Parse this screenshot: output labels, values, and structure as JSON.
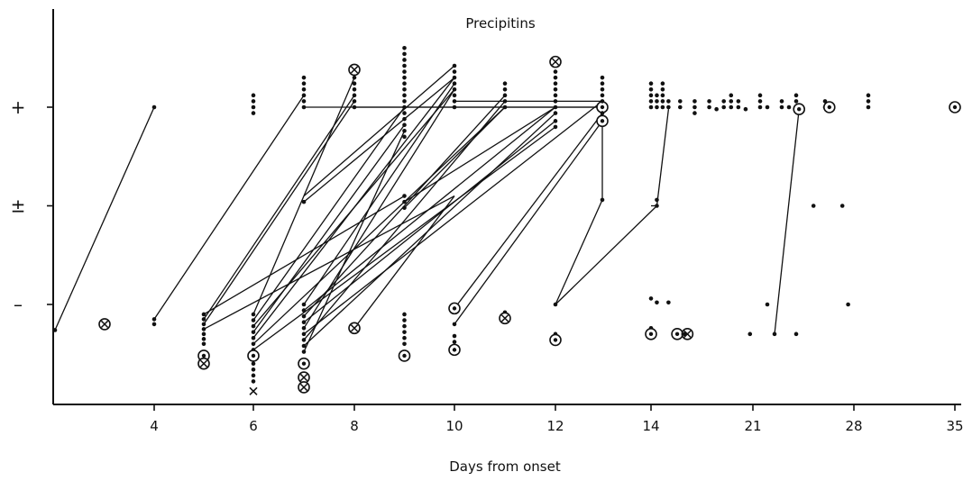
{
  "chart_data": {
    "type": "scatter",
    "title": "Precipitins",
    "xlabel": "Days from onset",
    "ylabel": "",
    "x_tick_labels": [
      "4",
      "6",
      "8",
      "10",
      "12",
      "14",
      "21",
      "28",
      "35"
    ],
    "y_categories": [
      "–",
      "±",
      "+"
    ],
    "grid": false,
    "legend": "none",
    "x_range": [
      2,
      36
    ],
    "y_scale_note": "categorical precipitin result; jittered vertically around each category",
    "marker_types": {
      "dot": "filled dot",
      "ring": "circled dot",
      "cross": "circled cross",
      "x": "cross"
    },
    "points": [
      {
        "x": 2,
        "y": -0.26,
        "m": "dot"
      },
      {
        "x": 3,
        "y": -0.2,
        "m": "cross"
      },
      {
        "x": 4,
        "y": -0.15,
        "m": "dot"
      },
      {
        "x": 4,
        "y": -0.2,
        "m": "dot"
      },
      {
        "x": 4,
        "y": 2.0,
        "m": "dot"
      },
      {
        "x": 5,
        "y": -0.1,
        "m": "dot"
      },
      {
        "x": 5,
        "y": -0.15,
        "m": "dot"
      },
      {
        "x": 5,
        "y": -0.2,
        "m": "dot"
      },
      {
        "x": 5,
        "y": -0.25,
        "m": "dot"
      },
      {
        "x": 5,
        "y": -0.3,
        "m": "dot"
      },
      {
        "x": 5,
        "y": -0.35,
        "m": "dot"
      },
      {
        "x": 5,
        "y": -0.4,
        "m": "dot"
      },
      {
        "x": 5,
        "y": -0.52,
        "m": "ring"
      },
      {
        "x": 5,
        "y": -0.6,
        "m": "cross"
      },
      {
        "x": 6,
        "y": 2.06,
        "m": "dot"
      },
      {
        "x": 6,
        "y": 2.0,
        "m": "dot"
      },
      {
        "x": 6,
        "y": 1.94,
        "m": "dot"
      },
      {
        "x": 6,
        "y": 2.12,
        "m": "dot"
      },
      {
        "x": 6,
        "y": -0.1,
        "m": "dot"
      },
      {
        "x": 6,
        "y": -0.16,
        "m": "dot"
      },
      {
        "x": 6,
        "y": -0.22,
        "m": "dot"
      },
      {
        "x": 6,
        "y": -0.28,
        "m": "dot"
      },
      {
        "x": 6,
        "y": -0.34,
        "m": "dot"
      },
      {
        "x": 6,
        "y": -0.4,
        "m": "dot"
      },
      {
        "x": 6,
        "y": -0.46,
        "m": "dot"
      },
      {
        "x": 6,
        "y": -0.52,
        "m": "ring"
      },
      {
        "x": 6,
        "y": -0.6,
        "m": "dot"
      },
      {
        "x": 6,
        "y": -0.66,
        "m": "dot"
      },
      {
        "x": 6,
        "y": -0.72,
        "m": "dot"
      },
      {
        "x": 6,
        "y": -0.78,
        "m": "dot"
      },
      {
        "x": 6,
        "y": -0.88,
        "m": "x"
      },
      {
        "x": 7,
        "y": 2.0,
        "m": "dot"
      },
      {
        "x": 7,
        "y": 2.06,
        "m": "dot"
      },
      {
        "x": 7,
        "y": 2.12,
        "m": "dot"
      },
      {
        "x": 7,
        "y": 2.18,
        "m": "dot"
      },
      {
        "x": 7,
        "y": 2.24,
        "m": "dot"
      },
      {
        "x": 7,
        "y": 2.3,
        "m": "dot"
      },
      {
        "x": 7,
        "y": 1.04,
        "m": "dot"
      },
      {
        "x": 7,
        "y": 0.0,
        "m": "dot"
      },
      {
        "x": 7,
        "y": -0.06,
        "m": "dot"
      },
      {
        "x": 7,
        "y": -0.12,
        "m": "dot"
      },
      {
        "x": 7,
        "y": -0.18,
        "m": "dot"
      },
      {
        "x": 7,
        "y": -0.24,
        "m": "dot"
      },
      {
        "x": 7,
        "y": -0.3,
        "m": "dot"
      },
      {
        "x": 7,
        "y": -0.36,
        "m": "dot"
      },
      {
        "x": 7,
        "y": -0.42,
        "m": "dot"
      },
      {
        "x": 7,
        "y": -0.48,
        "m": "dot"
      },
      {
        "x": 7,
        "y": -0.6,
        "m": "ring"
      },
      {
        "x": 7,
        "y": -0.74,
        "m": "cross"
      },
      {
        "x": 7,
        "y": -0.84,
        "m": "cross"
      },
      {
        "x": 8,
        "y": 2.0,
        "m": "dot"
      },
      {
        "x": 8,
        "y": 2.06,
        "m": "dot"
      },
      {
        "x": 8,
        "y": 2.12,
        "m": "dot"
      },
      {
        "x": 8,
        "y": 2.18,
        "m": "dot"
      },
      {
        "x": 8,
        "y": 2.24,
        "m": "dot"
      },
      {
        "x": 8,
        "y": 2.3,
        "m": "dot"
      },
      {
        "x": 8,
        "y": 2.38,
        "m": "cross"
      },
      {
        "x": 8,
        "y": -0.24,
        "m": "cross"
      },
      {
        "x": 9,
        "y": 2.0,
        "m": "dot"
      },
      {
        "x": 9,
        "y": 2.06,
        "m": "dot"
      },
      {
        "x": 9,
        "y": 2.12,
        "m": "dot"
      },
      {
        "x": 9,
        "y": 2.18,
        "m": "dot"
      },
      {
        "x": 9,
        "y": 2.24,
        "m": "dot"
      },
      {
        "x": 9,
        "y": 2.3,
        "m": "dot"
      },
      {
        "x": 9,
        "y": 2.36,
        "m": "dot"
      },
      {
        "x": 9,
        "y": 2.42,
        "m": "dot"
      },
      {
        "x": 9,
        "y": 2.48,
        "m": "dot"
      },
      {
        "x": 9,
        "y": 2.54,
        "m": "dot"
      },
      {
        "x": 9,
        "y": 2.6,
        "m": "dot"
      },
      {
        "x": 9,
        "y": 1.94,
        "m": "dot"
      },
      {
        "x": 9,
        "y": 1.88,
        "m": "dot"
      },
      {
        "x": 9,
        "y": 1.82,
        "m": "dot"
      },
      {
        "x": 9,
        "y": 1.76,
        "m": "dot"
      },
      {
        "x": 9,
        "y": 1.7,
        "m": "dot"
      },
      {
        "x": 9,
        "y": 1.1,
        "m": "dot"
      },
      {
        "x": 9,
        "y": 1.04,
        "m": "dot"
      },
      {
        "x": 9,
        "y": 0.98,
        "m": "dot"
      },
      {
        "x": 9,
        "y": -0.1,
        "m": "dot"
      },
      {
        "x": 9,
        "y": -0.16,
        "m": "dot"
      },
      {
        "x": 9,
        "y": -0.22,
        "m": "dot"
      },
      {
        "x": 9,
        "y": -0.28,
        "m": "dot"
      },
      {
        "x": 9,
        "y": -0.34,
        "m": "dot"
      },
      {
        "x": 9,
        "y": -0.4,
        "m": "dot"
      },
      {
        "x": 9,
        "y": -0.52,
        "m": "ring"
      },
      {
        "x": 10,
        "y": 2.0,
        "m": "dot"
      },
      {
        "x": 10,
        "y": 2.06,
        "m": "dot"
      },
      {
        "x": 10,
        "y": 2.12,
        "m": "dot"
      },
      {
        "x": 10,
        "y": 2.18,
        "m": "dot"
      },
      {
        "x": 10,
        "y": 2.24,
        "m": "dot"
      },
      {
        "x": 10,
        "y": 2.3,
        "m": "dot"
      },
      {
        "x": 10,
        "y": 2.36,
        "m": "dot"
      },
      {
        "x": 10,
        "y": 2.42,
        "m": "dot"
      },
      {
        "x": 10,
        "y": -0.04,
        "m": "ring"
      },
      {
        "x": 10,
        "y": -0.2,
        "m": "dot"
      },
      {
        "x": 10,
        "y": -0.32,
        "m": "dot"
      },
      {
        "x": 10,
        "y": -0.38,
        "m": "dot"
      },
      {
        "x": 10,
        "y": -0.46,
        "m": "ring"
      },
      {
        "x": 11,
        "y": 2.0,
        "m": "dot"
      },
      {
        "x": 11,
        "y": 2.06,
        "m": "dot"
      },
      {
        "x": 11,
        "y": 2.12,
        "m": "dot"
      },
      {
        "x": 11,
        "y": 2.18,
        "m": "dot"
      },
      {
        "x": 11,
        "y": 2.24,
        "m": "dot"
      },
      {
        "x": 11,
        "y": -0.08,
        "m": "dot"
      },
      {
        "x": 11,
        "y": -0.14,
        "m": "cross"
      },
      {
        "x": 12,
        "y": 2.0,
        "m": "dot"
      },
      {
        "x": 12,
        "y": 2.06,
        "m": "dot"
      },
      {
        "x": 12,
        "y": 2.12,
        "m": "dot"
      },
      {
        "x": 12,
        "y": 2.18,
        "m": "dot"
      },
      {
        "x": 12,
        "y": 2.24,
        "m": "dot"
      },
      {
        "x": 12,
        "y": 2.3,
        "m": "dot"
      },
      {
        "x": 12,
        "y": 2.36,
        "m": "dot"
      },
      {
        "x": 12,
        "y": 2.46,
        "m": "cross"
      },
      {
        "x": 12,
        "y": 1.94,
        "m": "dot"
      },
      {
        "x": 12,
        "y": 1.86,
        "m": "dot"
      },
      {
        "x": 12,
        "y": 1.8,
        "m": "dot"
      },
      {
        "x": 12,
        "y": 0.0,
        "m": "dot"
      },
      {
        "x": 12,
        "y": -0.3,
        "m": "dot"
      },
      {
        "x": 12,
        "y": -0.36,
        "m": "ring"
      },
      {
        "x": 13,
        "y": 2.0,
        "m": "ring"
      },
      {
        "x": 13,
        "y": 1.86,
        "m": "ring"
      },
      {
        "x": 13,
        "y": 2.06,
        "m": "dot"
      },
      {
        "x": 13,
        "y": 2.12,
        "m": "dot"
      },
      {
        "x": 13,
        "y": 2.18,
        "m": "dot"
      },
      {
        "x": 13,
        "y": 2.24,
        "m": "dot"
      },
      {
        "x": 13,
        "y": 2.3,
        "m": "dot"
      },
      {
        "x": 13,
        "y": 1.94,
        "m": "dot"
      },
      {
        "x": 13,
        "y": 1.06,
        "m": "dot"
      },
      {
        "x": 14,
        "y": 2.0,
        "m": "dot"
      },
      {
        "x": 14,
        "y": 2.06,
        "m": "dot"
      },
      {
        "x": 14,
        "y": 2.12,
        "m": "dot"
      },
      {
        "x": 14,
        "y": 2.18,
        "m": "dot"
      },
      {
        "x": 14,
        "y": 2.24,
        "m": "dot"
      },
      {
        "x": 14,
        "y": 0.06,
        "m": "dot"
      },
      {
        "x": 14,
        "y": -0.24,
        "m": "dot"
      },
      {
        "x": 14,
        "y": -0.3,
        "m": "ring"
      },
      {
        "x": 14.4,
        "y": 2.0,
        "m": "dot"
      },
      {
        "x": 14.4,
        "y": 2.06,
        "m": "dot"
      },
      {
        "x": 14.4,
        "y": 2.12,
        "m": "dot"
      },
      {
        "x": 14.4,
        "y": 1.06,
        "m": "dot"
      },
      {
        "x": 14.4,
        "y": 1.0,
        "m": "dot"
      },
      {
        "x": 14.4,
        "y": 0.02,
        "m": "dot"
      },
      {
        "x": 14.8,
        "y": 2.0,
        "m": "dot"
      },
      {
        "x": 14.8,
        "y": 2.06,
        "m": "dot"
      },
      {
        "x": 14.8,
        "y": 2.12,
        "m": "dot"
      },
      {
        "x": 14.8,
        "y": 2.18,
        "m": "dot"
      },
      {
        "x": 14.8,
        "y": 2.24,
        "m": "dot"
      },
      {
        "x": 15.2,
        "y": 2.0,
        "m": "dot"
      },
      {
        "x": 15.2,
        "y": 2.06,
        "m": "dot"
      },
      {
        "x": 15.2,
        "y": 0.02,
        "m": "dot"
      },
      {
        "x": 15.8,
        "y": -0.3,
        "m": "ring"
      },
      {
        "x": 16,
        "y": 2.0,
        "m": "dot"
      },
      {
        "x": 16,
        "y": 2.06,
        "m": "dot"
      },
      {
        "x": 16.5,
        "y": -0.3,
        "m": "cross"
      },
      {
        "x": 16.3,
        "y": -0.3,
        "m": "dot"
      },
      {
        "x": 17,
        "y": 2.0,
        "m": "dot"
      },
      {
        "x": 17,
        "y": 2.06,
        "m": "dot"
      },
      {
        "x": 17,
        "y": 1.94,
        "m": "dot"
      },
      {
        "x": 18,
        "y": 2.0,
        "m": "dot"
      },
      {
        "x": 18,
        "y": 2.06,
        "m": "dot"
      },
      {
        "x": 18.5,
        "y": 1.98,
        "m": "dot"
      },
      {
        "x": 19,
        "y": 2.0,
        "m": "dot"
      },
      {
        "x": 19,
        "y": 2.06,
        "m": "dot"
      },
      {
        "x": 19.5,
        "y": 2.0,
        "m": "dot"
      },
      {
        "x": 19.5,
        "y": 2.06,
        "m": "dot"
      },
      {
        "x": 19.5,
        "y": 2.12,
        "m": "dot"
      },
      {
        "x": 20,
        "y": 2.0,
        "m": "dot"
      },
      {
        "x": 20,
        "y": 2.06,
        "m": "dot"
      },
      {
        "x": 20.5,
        "y": 1.98,
        "m": "dot"
      },
      {
        "x": 20.8,
        "y": -0.3,
        "m": "dot"
      },
      {
        "x": 21.5,
        "y": 2.0,
        "m": "dot"
      },
      {
        "x": 21.5,
        "y": 2.06,
        "m": "dot"
      },
      {
        "x": 21.5,
        "y": 2.12,
        "m": "dot"
      },
      {
        "x": 22,
        "y": 2.0,
        "m": "dot"
      },
      {
        "x": 22,
        "y": 0.0,
        "m": "dot"
      },
      {
        "x": 22.5,
        "y": -0.3,
        "m": "dot"
      },
      {
        "x": 23,
        "y": 2.0,
        "m": "dot"
      },
      {
        "x": 23,
        "y": 2.06,
        "m": "dot"
      },
      {
        "x": 23.5,
        "y": 2.0,
        "m": "dot"
      },
      {
        "x": 24,
        "y": 2.0,
        "m": "dot"
      },
      {
        "x": 24,
        "y": 2.06,
        "m": "dot"
      },
      {
        "x": 24,
        "y": 2.12,
        "m": "dot"
      },
      {
        "x": 24,
        "y": -0.3,
        "m": "dot"
      },
      {
        "x": 24.2,
        "y": 1.98,
        "m": "ring"
      },
      {
        "x": 25.2,
        "y": 1.0,
        "m": "dot"
      },
      {
        "x": 26,
        "y": 2.0,
        "m": "dot"
      },
      {
        "x": 26,
        "y": 2.06,
        "m": "dot"
      },
      {
        "x": 26.3,
        "y": 2.0,
        "m": "ring"
      },
      {
        "x": 27.2,
        "y": 1.0,
        "m": "dot"
      },
      {
        "x": 27.6,
        "y": 0.0,
        "m": "dot"
      },
      {
        "x": 29,
        "y": 2.0,
        "m": "dot"
      },
      {
        "x": 29,
        "y": 2.06,
        "m": "dot"
      },
      {
        "x": 29,
        "y": 2.12,
        "m": "dot"
      },
      {
        "x": 35,
        "y": 2.0,
        "m": "ring"
      }
    ],
    "connections": [
      [
        2,
        -0.26,
        4,
        2.0
      ],
      [
        4,
        -0.15,
        7,
        2.12
      ],
      [
        5,
        -0.1,
        9,
        1.1
      ],
      [
        5,
        -0.15,
        8,
        2.12
      ],
      [
        5,
        -0.2,
        8,
        2.06
      ],
      [
        5,
        -0.25,
        10,
        1.1
      ],
      [
        6,
        -0.1,
        8,
        2.3
      ],
      [
        6,
        -0.16,
        9,
        2.0
      ],
      [
        6,
        -0.22,
        10,
        2.18
      ],
      [
        6,
        -0.28,
        9,
        1.82
      ],
      [
        6,
        -0.34,
        10,
        2.3
      ],
      [
        6,
        -0.4,
        11,
        2.0
      ],
      [
        6,
        -0.46,
        12,
        1.8
      ],
      [
        7,
        2.0,
        13,
        2.0
      ],
      [
        7,
        1.04,
        10,
        2.3
      ],
      [
        7,
        0.0,
        10,
        2.24
      ],
      [
        7,
        -0.06,
        12,
        2.0
      ],
      [
        7,
        -0.12,
        11,
        2.12
      ],
      [
        7,
        -0.18,
        12,
        1.86
      ],
      [
        7,
        -0.24,
        10,
        2.18
      ],
      [
        7,
        -0.3,
        13,
        2.06
      ],
      [
        7,
        -0.36,
        11,
        2.06
      ],
      [
        7,
        -0.42,
        12,
        1.94
      ],
      [
        7,
        -0.48,
        9,
        1.76
      ],
      [
        7,
        1.1,
        10,
        2.42
      ],
      [
        8,
        -0.24,
        10,
        1.1
      ],
      [
        8,
        2.0,
        13,
        2.0
      ],
      [
        9,
        1.04,
        12,
        2.0
      ],
      [
        9,
        0.98,
        11,
        2.0
      ],
      [
        10,
        2.06,
        13,
        2.06
      ],
      [
        10,
        -0.2,
        13,
        1.86
      ],
      [
        10,
        -0.04,
        13,
        1.94
      ],
      [
        12,
        0.0,
        13,
        1.06
      ],
      [
        13,
        1.06,
        13,
        2.0
      ],
      [
        14,
        1.0,
        14.4,
        1.0
      ],
      [
        14.4,
        1.0,
        15.2,
        1.98
      ],
      [
        12,
        0.0,
        14.4,
        1.0
      ],
      [
        22.5,
        -0.3,
        24.2,
        1.98
      ]
    ]
  }
}
